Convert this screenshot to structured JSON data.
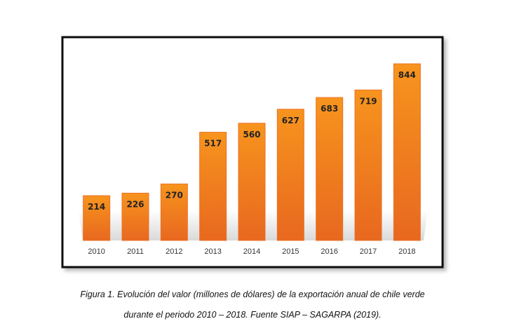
{
  "chart_data": {
    "type": "bar",
    "categories": [
      "2010",
      "2011",
      "2012",
      "2013",
      "2014",
      "2015",
      "2016",
      "2017",
      "2018"
    ],
    "values": [
      214,
      226,
      270,
      517,
      560,
      627,
      683,
      719,
      844
    ],
    "color": "#ed7125"
  },
  "caption": [
    "Figura 1. Evolución del valor (millones de dólares) de la exportación anual de chile verde",
    "durante el periodo 2010 – 2018. Fuente SIAP – SAGARPA (2019)."
  ]
}
